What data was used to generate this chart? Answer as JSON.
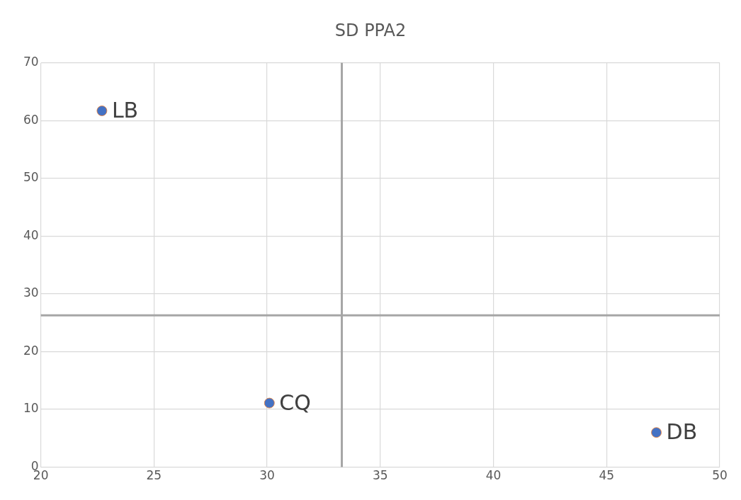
{
  "chart_data": {
    "type": "scatter",
    "title": "SD PPA2",
    "series": [
      {
        "color": "#4472c4",
        "x": [
          22.7,
          30.1,
          47.2
        ],
        "values": [
          61.7,
          11.1,
          6.0
        ]
      }
    ],
    "xlim": [
      20,
      50
    ],
    "xticks": [
      20,
      25,
      30,
      35,
      40,
      45,
      50
    ],
    "ylim": [
      0,
      70
    ],
    "yticks": [
      0,
      10,
      20,
      30,
      40,
      50,
      60,
      70
    ],
    "grid": true,
    "legend": false,
    "marker": "circle",
    "ref_lines": [
      {
        "axis": "x",
        "value": 33.3,
        "color": "#a6a6a6"
      },
      {
        "axis": "y",
        "value": 26.3,
        "color": "#a6a6a6"
      }
    ],
    "annotations": [
      {
        "text": "LB",
        "x": 22.7,
        "y": 61.7
      },
      {
        "text": "CQ",
        "x": 30.1,
        "y": 11.1
      },
      {
        "text": "DB",
        "x": 47.2,
        "y": 6.0
      }
    ]
  }
}
